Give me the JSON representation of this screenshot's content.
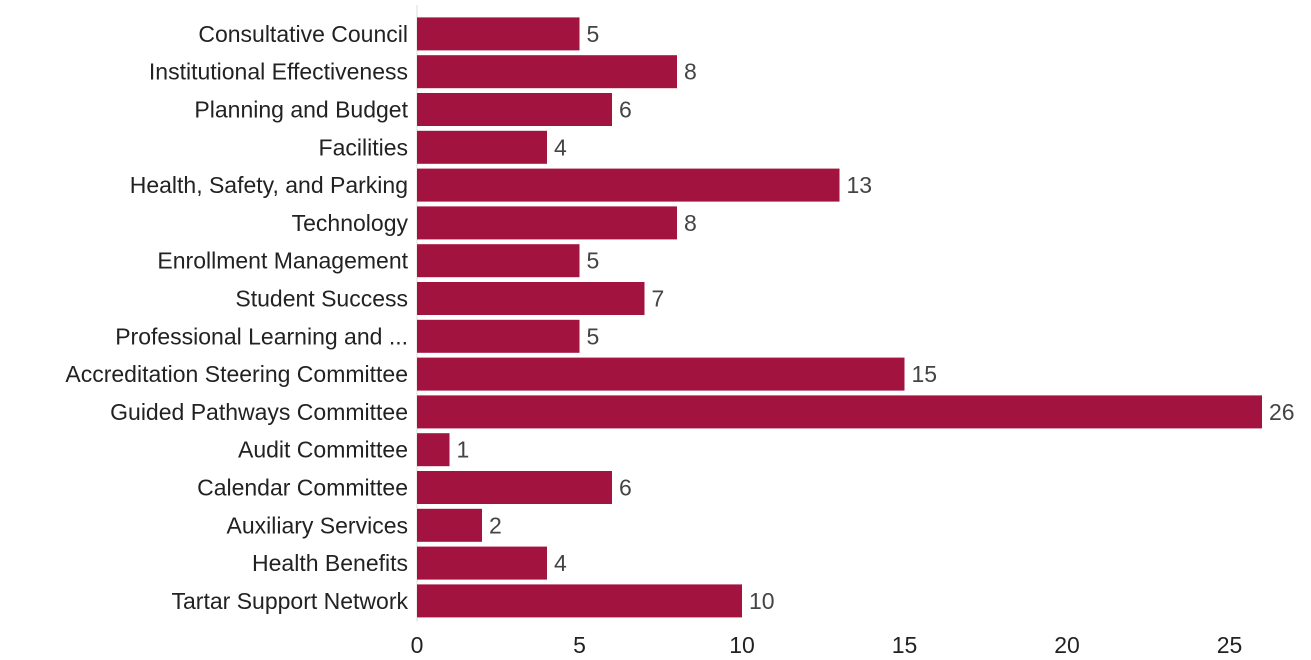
{
  "chart_data": {
    "type": "bar",
    "orientation": "horizontal",
    "title": "",
    "xlabel": "",
    "ylabel": "",
    "categories": [
      "Consultative Council",
      "Institutional Effectiveness",
      "Planning and Budget",
      "Facilities",
      "Health, Safety, and Parking",
      "Technology",
      "Enrollment Management",
      "Student Success",
      "Professional Learning and ...",
      "Accreditation Steering Committee",
      "Guided Pathways Committee",
      "Audit Committee",
      "Calendar Committee",
      "Auxiliary Services",
      "Health Benefits",
      "Tartar Support Network"
    ],
    "values": [
      5,
      8,
      6,
      4,
      13,
      8,
      5,
      7,
      5,
      15,
      26,
      1,
      6,
      2,
      4,
      10
    ],
    "xlim": [
      0,
      26
    ],
    "xticks": [
      0,
      5,
      10,
      15,
      20,
      25
    ],
    "grid": false,
    "bar_color": "#a31340",
    "axis_color": "#dddddd"
  }
}
